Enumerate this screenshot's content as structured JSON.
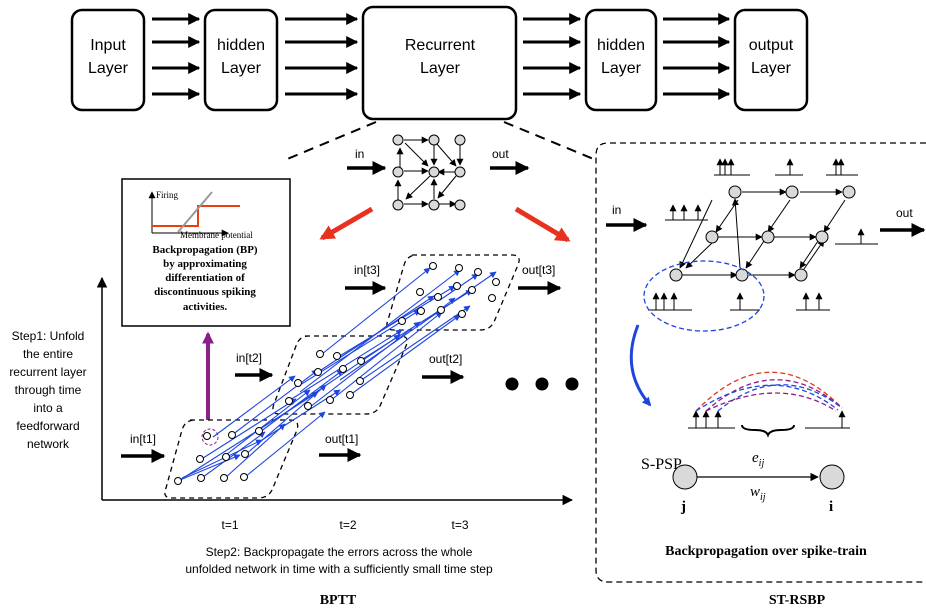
{
  "pipeline": {
    "boxes": [
      {
        "line1": "Input",
        "line2": "Layer"
      },
      {
        "line1": "hidden",
        "line2": "Layer"
      },
      {
        "line1": "Recurrent",
        "line2": "Layer"
      },
      {
        "line1": "hidden",
        "line2": "Layer"
      },
      {
        "line1": "output",
        "line2": "Layer"
      }
    ]
  },
  "recurrent_detail": {
    "in_label": "in",
    "out_label": "out"
  },
  "inset": {
    "y_axis_label": "Firing",
    "x_axis_label": "Membrane potential",
    "caption_lines": [
      "Backpropagation (BP)",
      "by  approximating",
      "differentiation of",
      "discontinuous spiking",
      "activities."
    ]
  },
  "bptt": {
    "step1_lines": [
      "Step1: Unfold",
      "the entire",
      "recurrent layer",
      "through time",
      "into a",
      "feedforward",
      "network"
    ],
    "inputs": [
      "in[t1]",
      "in[t2]",
      "in[t3]"
    ],
    "outputs": [
      "out[t1]",
      "out[t2]",
      "out[t3]"
    ],
    "time_ticks": [
      "t=1",
      "t=2",
      "t=3"
    ],
    "step2_lines": [
      "Step2: Backpropagate the errors across the whole",
      "unfolded network in time with a sufficiently small time step"
    ],
    "title": "BPTT"
  },
  "strsbp": {
    "in_label": "in",
    "out_label": "out",
    "spsp_label": "S-PSP",
    "edge_label_top": "e",
    "edge_label_top_sub": "ij",
    "edge_label_bottom": "w",
    "edge_label_bottom_sub": "ij",
    "node_j": "j",
    "node_i": "i",
    "caption": "Backpropagation over spike-train",
    "title": "ST-RSBP"
  },
  "colors": {
    "red_arrow": "#e8321f",
    "blue_link": "#1f45e0",
    "purple_arrow": "#8a1f8a",
    "node_fill": "#d9d9d9",
    "inset_orange": "#e8400f"
  }
}
